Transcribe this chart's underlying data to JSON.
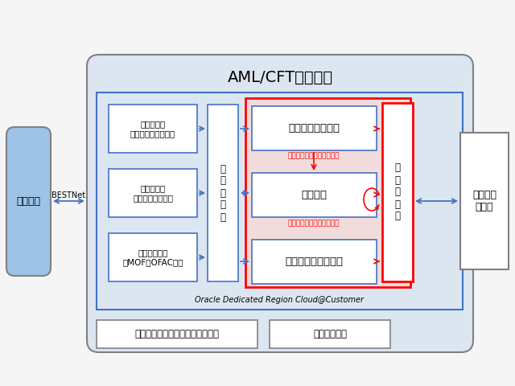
{
  "bg_color": "#f5f5f5",
  "title": "AML/CFTサービス",
  "oracle_label": "Oracle Dedicated Region Cloud@Customer",
  "bestnet_label": "BESTNet",
  "kinyu_label": "金融機関",
  "saigai_label": "災害対策\nサイト",
  "toukei_label": "デ\nー\nタ\n統\n合",
  "kese_label": "ケ\nー\nス\n管\n理",
  "data_box_labels": [
    "取引データ\n（仕向、被仕向等）",
    "顧客データ\n（属性、格付等）",
    "制裁者データ\n（MOF、OFAC等）"
  ],
  "service_box_labels": [
    "取引モニタリング",
    "顧客管理",
    "顧客フィルタリング"
  ],
  "red_label1": "顧客リスクに応じた敗居値",
  "red_label2": "継続的な顧客リスク再計算",
  "template_label": "テンプレート開発・メンテナンス",
  "help_label": "ヘルプデスク",
  "colors": {
    "bg": "#f5f5f5",
    "outer_fill": "#dce6f1",
    "outer_edge": "#808080",
    "inner_fill": "#dce6f1",
    "inner_edge": "#4472c4",
    "white": "#ffffff",
    "blue_edge": "#4472c4",
    "red_edge": "#ff0000",
    "red_fill": "#f2dcdb",
    "blue_arrow": "#4472c4",
    "red_arrow": "#ff0000",
    "kinyu_fill": "#9dc3e6",
    "red_text": "#ff0000",
    "black": "#000000"
  }
}
